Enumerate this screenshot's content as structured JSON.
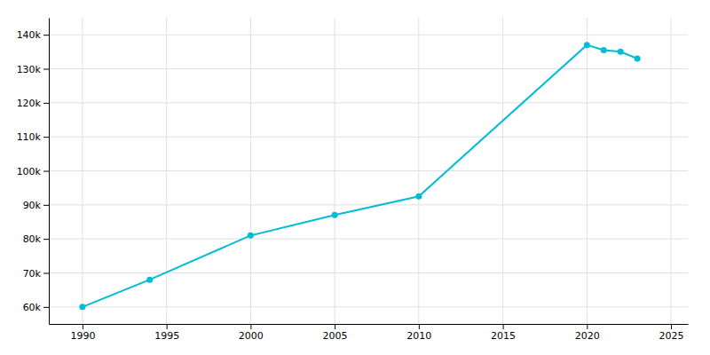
{
  "chart_data": {
    "type": "line",
    "x": [
      1990,
      1994,
      2000,
      2005,
      2010,
      2020,
      2021,
      2022,
      2023
    ],
    "values": [
      60000,
      68000,
      81000,
      87000,
      92500,
      137000,
      135500,
      135000,
      133000
    ],
    "color": "#00BCD4",
    "marker": "circle",
    "xlim": [
      1988,
      2026
    ],
    "ylim": [
      55000,
      145000
    ],
    "xticks": [
      1990,
      1995,
      2000,
      2005,
      2010,
      2015,
      2020,
      2025
    ],
    "yticks": [
      {
        "value": 60000,
        "label": "60k"
      },
      {
        "value": 70000,
        "label": "70k"
      },
      {
        "value": 80000,
        "label": "80k"
      },
      {
        "value": 90000,
        "label": "90k"
      },
      {
        "value": 100000,
        "label": "100k"
      },
      {
        "value": 110000,
        "label": "110k"
      },
      {
        "value": 120000,
        "label": "120k"
      },
      {
        "value": 130000,
        "label": "130k"
      },
      {
        "value": 140000,
        "label": "140k"
      }
    ],
    "grid": true
  }
}
